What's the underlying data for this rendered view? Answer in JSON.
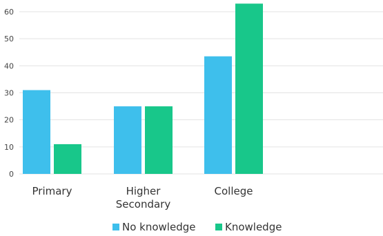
{
  "chart_data": {
    "type": "bar",
    "categories": [
      [
        "Primary"
      ],
      [
        "Higher",
        "Secondary"
      ],
      [
        "College"
      ]
    ],
    "series": [
      {
        "name": "No knowledge",
        "values": [
          31,
          25,
          43.5
        ],
        "color": "#3ebfec"
      },
      {
        "name": "Knowledge",
        "values": [
          11,
          25,
          63
        ],
        "color": "#18c78a"
      }
    ],
    "ylim": [
      0,
      60
    ],
    "yticks": [
      0,
      10,
      20,
      30,
      40,
      50,
      60
    ],
    "grid": true,
    "legend_position": "bottom",
    "title": "",
    "xlabel": "",
    "ylabel": ""
  }
}
